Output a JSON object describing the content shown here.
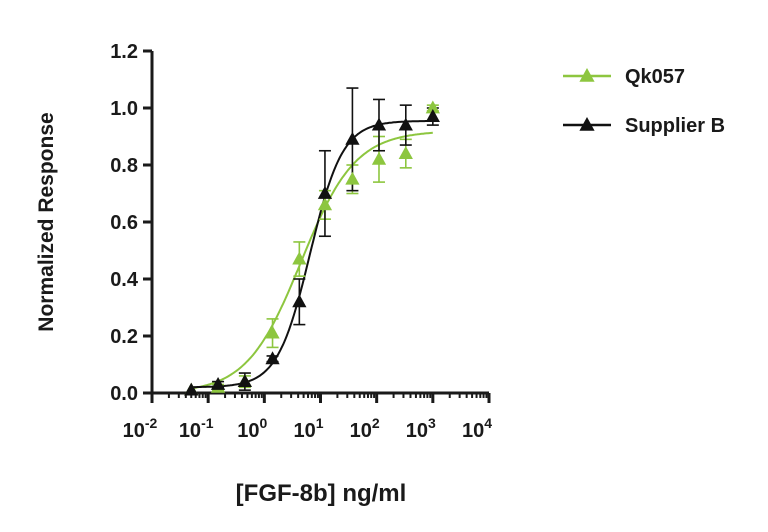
{
  "chart_data": {
    "type": "scatter",
    "title": "",
    "xlabel": "[FGF-8b] ng/ml",
    "ylabel": "Normalized Response",
    "x_scale": "log10",
    "xlim": [
      0.01,
      10000
    ],
    "ylim": [
      0,
      1.2
    ],
    "x_ticks": [
      {
        "value": 0.01,
        "base": "10",
        "exp": "-2"
      },
      {
        "value": 0.1,
        "base": "10",
        "exp": "-1"
      },
      {
        "value": 1,
        "base": "10",
        "exp": "0"
      },
      {
        "value": 10,
        "base": "10",
        "exp": "1"
      },
      {
        "value": 100,
        "base": "10",
        "exp": "2"
      },
      {
        "value": 1000,
        "base": "10",
        "exp": "3"
      },
      {
        "value": 10000,
        "base": "10",
        "exp": "4"
      }
    ],
    "y_ticks": [
      {
        "value": 0.0,
        "label": "0.0"
      },
      {
        "value": 0.2,
        "label": "0.2"
      },
      {
        "value": 0.4,
        "label": "0.4"
      },
      {
        "value": 0.6,
        "label": "0.6"
      },
      {
        "value": 0.8,
        "label": "0.8"
      },
      {
        "value": 1.0,
        "label": "1.0"
      },
      {
        "value": 1.2,
        "label": "1.2"
      }
    ],
    "grid": false,
    "legend_position": "top-right",
    "series": [
      {
        "name": "Qk057",
        "color": "#8dc63f",
        "marker": "triangle",
        "points": [
          {
            "x": 0.05,
            "y": 0.01,
            "err": 0.0
          },
          {
            "x": 0.15,
            "y": 0.02,
            "err": 0.01
          },
          {
            "x": 0.45,
            "y": 0.04,
            "err": 0.02
          },
          {
            "x": 1.4,
            "y": 0.21,
            "err": 0.05
          },
          {
            "x": 4.2,
            "y": 0.47,
            "err": 0.06
          },
          {
            "x": 12,
            "y": 0.66,
            "err": 0.05
          },
          {
            "x": 37,
            "y": 0.75,
            "err": 0.05
          },
          {
            "x": 110,
            "y": 0.82,
            "err": 0.08
          },
          {
            "x": 330,
            "y": 0.84,
            "err": 0.05
          },
          {
            "x": 1000,
            "y": 1.0,
            "err": 0.01
          }
        ],
        "fit": {
          "bottom": 0.0,
          "top": 0.92,
          "ec50": 4.5,
          "hill": 0.9
        }
      },
      {
        "name": "Supplier B",
        "color": "#111111",
        "marker": "triangle",
        "points": [
          {
            "x": 0.05,
            "y": 0.01,
            "err": 0.0
          },
          {
            "x": 0.15,
            "y": 0.03,
            "err": 0.01
          },
          {
            "x": 0.45,
            "y": 0.04,
            "err": 0.03
          },
          {
            "x": 1.4,
            "y": 0.12,
            "err": 0.01
          },
          {
            "x": 4.2,
            "y": 0.32,
            "err": 0.08
          },
          {
            "x": 12,
            "y": 0.7,
            "err": 0.15
          },
          {
            "x": 37,
            "y": 0.89,
            "err": 0.18
          },
          {
            "x": 110,
            "y": 0.94,
            "err": 0.09
          },
          {
            "x": 330,
            "y": 0.94,
            "err": 0.07
          },
          {
            "x": 1000,
            "y": 0.97,
            "err": 0.03
          }
        ],
        "fit": {
          "bottom": 0.02,
          "top": 0.955,
          "ec50": 6.5,
          "hill": 1.5
        }
      }
    ]
  }
}
